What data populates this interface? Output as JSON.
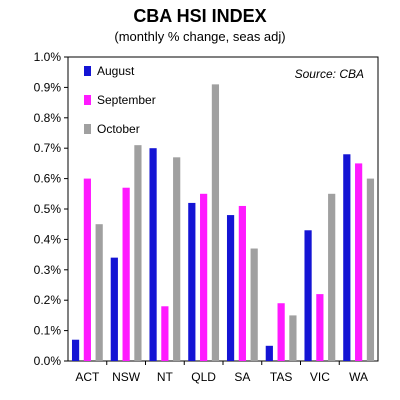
{
  "chart_data": {
    "type": "bar",
    "title": "CBA HSI INDEX",
    "subtitle": "(monthly % change, seas adj)",
    "source": "Source: CBA",
    "categories": [
      "ACT",
      "NSW",
      "NT",
      "QLD",
      "SA",
      "TAS",
      "VIC",
      "WA"
    ],
    "series": [
      {
        "name": "August",
        "color": "#1414d4",
        "values": [
          0.07,
          0.34,
          0.7,
          0.52,
          0.48,
          0.05,
          0.43,
          0.68
        ]
      },
      {
        "name": "September",
        "color": "#ff1aff",
        "values": [
          0.6,
          0.57,
          0.18,
          0.55,
          0.51,
          0.19,
          0.22,
          0.65
        ]
      },
      {
        "name": "October",
        "color": "#a0a0a0",
        "values": [
          0.45,
          0.71,
          0.67,
          0.91,
          0.37,
          0.15,
          0.55,
          0.6
        ]
      }
    ],
    "ylim": [
      0,
      1.0
    ],
    "yticks": [
      "0.0%",
      "0.1%",
      "0.2%",
      "0.3%",
      "0.4%",
      "0.5%",
      "0.6%",
      "0.7%",
      "0.8%",
      "0.9%",
      "1.0%"
    ],
    "grid": false,
    "legend": "top-left"
  }
}
